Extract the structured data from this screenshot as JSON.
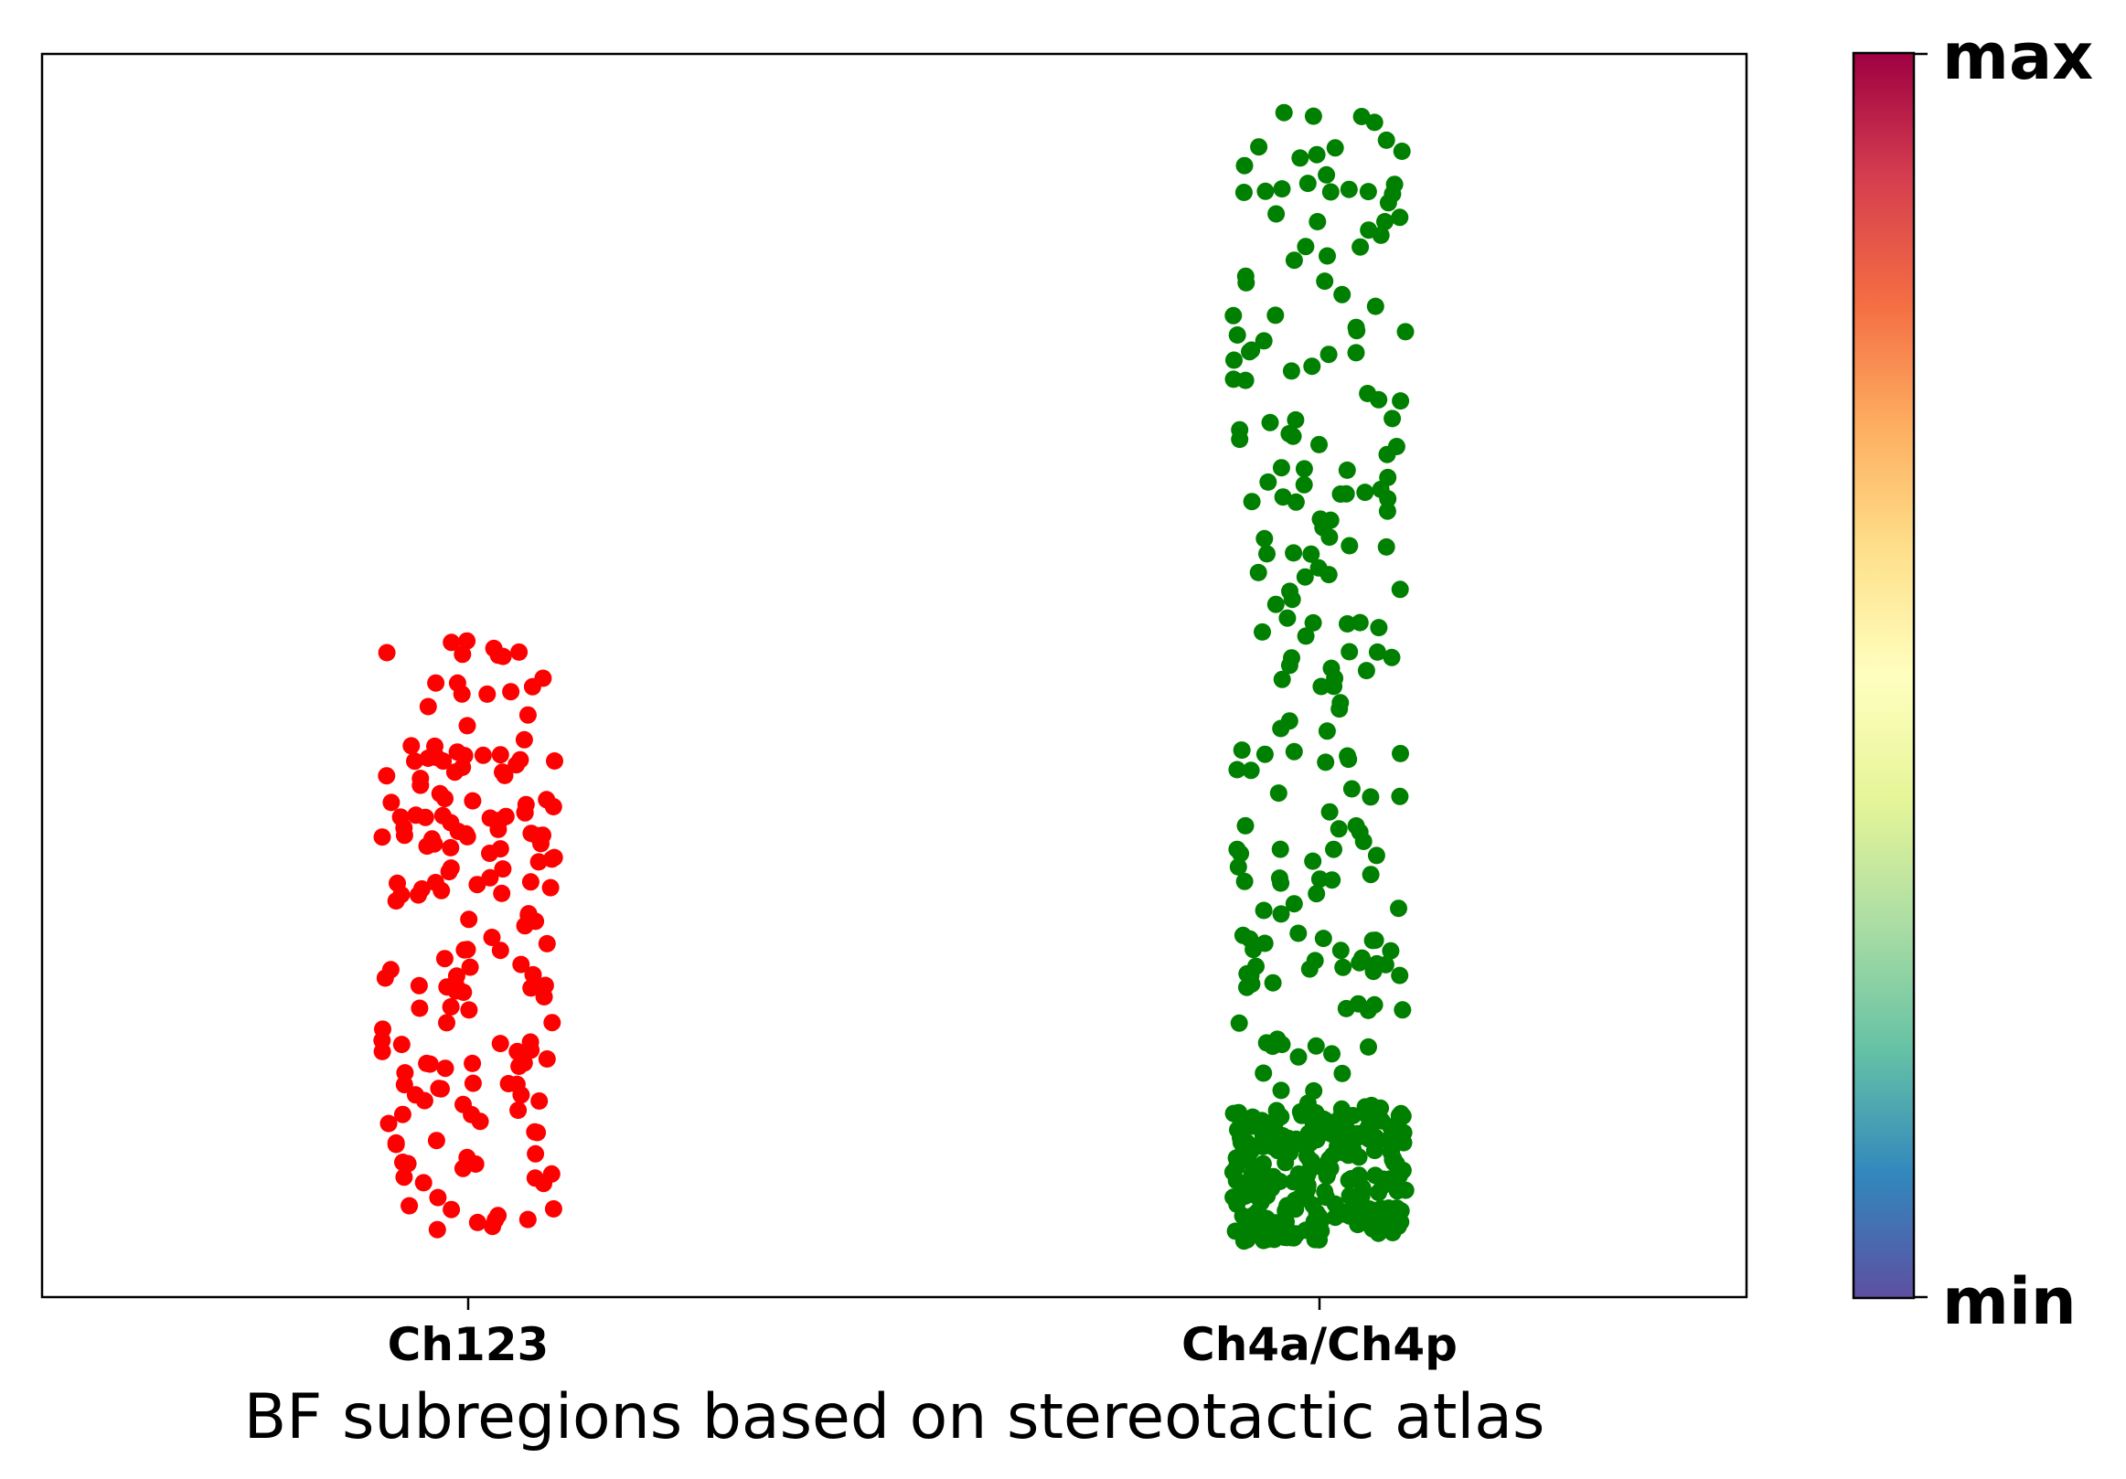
{
  "chart_data": {
    "type": "scatter",
    "title": "",
    "xlabel": "BF subregions based on stereotactic atlas",
    "ylabel": "",
    "categories": [
      "Ch123",
      "Ch4a/Ch4p"
    ],
    "ylim": [
      0,
      1
    ],
    "grid": false,
    "legend": "none",
    "series": [
      {
        "category": "Ch123",
        "color": "#ff0000",
        "count": 180,
        "y_range": [
          0.05,
          0.53
        ],
        "distribution": "uniform"
      },
      {
        "category": "Ch4a/Ch4p",
        "color": "#008000",
        "count": 460,
        "y_range": [
          0.045,
          0.955
        ],
        "distribution": "dense-low"
      }
    ],
    "colorbar": {
      "colormap": "Spectral",
      "top_label": "max",
      "bottom_label": "min",
      "stops": [
        "#5e4fa2",
        "#3288bd",
        "#66c2a5",
        "#abdda4",
        "#e6f598",
        "#ffffbf",
        "#fee08b",
        "#fdae61",
        "#f46d43",
        "#d53e4f",
        "#9e0142"
      ]
    }
  }
}
